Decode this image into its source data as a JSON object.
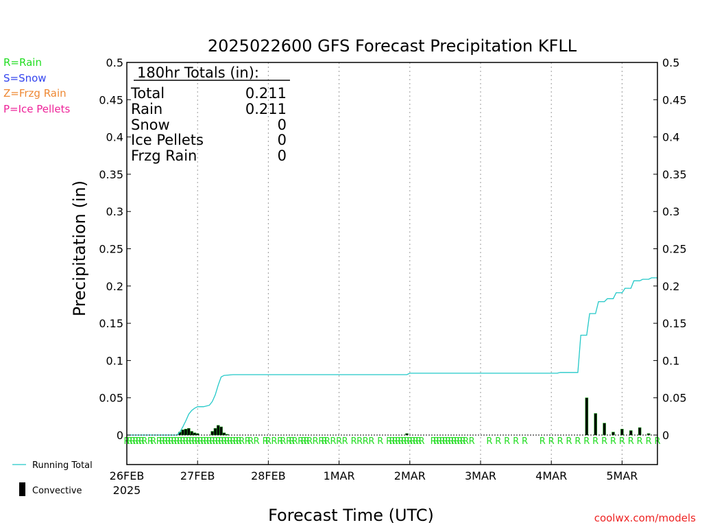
{
  "title": "2025022600 GFS Forecast Precipitation KFLL",
  "legend_types": [
    {
      "label": "R=Rain",
      "color": "#22dd22"
    },
    {
      "label": "S=Snow",
      "color": "#3344ee"
    },
    {
      "label": "Z=Frzg Rain",
      "color": "#ee8833"
    },
    {
      "label": "P=Ice Pellets",
      "color": "#ee2299"
    }
  ],
  "legend_bottom": {
    "running_total": "Running Total",
    "convective": "Convective"
  },
  "running_total_color": "#22c8c8",
  "bar_color": "#000000",
  "bar_edge_color": "#22aa22",
  "rain_marker_color": "#22dd22",
  "totals": {
    "header": "180hr Totals (in):",
    "rows": [
      {
        "label": "Total",
        "value": "0.211"
      },
      {
        "label": "Rain",
        "value": "0.211"
      },
      {
        "label": "Snow",
        "value": "0"
      },
      {
        "label": "Ice Pellets",
        "value": "0"
      },
      {
        "label": "Frzg Rain",
        "value": "0"
      }
    ]
  },
  "xlabel": "Forecast Time (UTC)",
  "ylabel": "Precipitation (in)",
  "credit": "coolwx.com/models",
  "chart_data": {
    "type": "bar",
    "x_unit": "forecast hour from 2025-02-26 00 UTC",
    "xlim": [
      0,
      180
    ],
    "ylim": [
      0,
      0.5
    ],
    "yticks": [
      "0",
      "0.05",
      "0.1",
      "0.15",
      "0.2",
      "0.25",
      "0.3",
      "0.35",
      "0.4",
      "0.45",
      "0.5"
    ],
    "xticks": [
      {
        "hour": 0,
        "label": "26FEB",
        "sub": "2025"
      },
      {
        "hour": 24,
        "label": "27FEB",
        "sub": ""
      },
      {
        "hour": 48,
        "label": "28FEB",
        "sub": ""
      },
      {
        "hour": 72,
        "label": "1MAR",
        "sub": ""
      },
      {
        "hour": 96,
        "label": "2MAR",
        "sub": ""
      },
      {
        "hour": 120,
        "label": "3MAR",
        "sub": ""
      },
      {
        "hour": 144,
        "label": "4MAR",
        "sub": ""
      },
      {
        "hour": 168,
        "label": "5MAR",
        "sub": ""
      }
    ],
    "precip_bars": [
      {
        "hour": 18,
        "value": 0.004
      },
      {
        "hour": 19,
        "value": 0.007
      },
      {
        "hour": 20,
        "value": 0.008
      },
      {
        "hour": 21,
        "value": 0.009
      },
      {
        "hour": 22,
        "value": 0.005
      },
      {
        "hour": 23,
        "value": 0.003
      },
      {
        "hour": 24,
        "value": 0.002
      },
      {
        "hour": 29,
        "value": 0.005
      },
      {
        "hour": 30,
        "value": 0.009
      },
      {
        "hour": 31,
        "value": 0.013
      },
      {
        "hour": 32,
        "value": 0.011
      },
      {
        "hour": 33,
        "value": 0.003
      },
      {
        "hour": 34,
        "value": 0.001
      },
      {
        "hour": 95,
        "value": 0.002
      },
      {
        "hour": 156,
        "value": 0.05
      },
      {
        "hour": 159,
        "value": 0.029
      },
      {
        "hour": 162,
        "value": 0.016
      },
      {
        "hour": 165,
        "value": 0.004
      },
      {
        "hour": 168,
        "value": 0.008
      },
      {
        "hour": 171,
        "value": 0.006
      },
      {
        "hour": 174,
        "value": 0.01
      },
      {
        "hour": 177,
        "value": 0.002
      }
    ],
    "running_total": [
      [
        0,
        0
      ],
      [
        17,
        0
      ],
      [
        18,
        0.004
      ],
      [
        19,
        0.011
      ],
      [
        20,
        0.019
      ],
      [
        21,
        0.028
      ],
      [
        22,
        0.033
      ],
      [
        23,
        0.036
      ],
      [
        24,
        0.038
      ],
      [
        26,
        0.038
      ],
      [
        28,
        0.04
      ],
      [
        29,
        0.045
      ],
      [
        30,
        0.054
      ],
      [
        31,
        0.067
      ],
      [
        32,
        0.078
      ],
      [
        33,
        0.08
      ],
      [
        36,
        0.081
      ],
      [
        95,
        0.081
      ],
      [
        96,
        0.083
      ],
      [
        146,
        0.083
      ],
      [
        147,
        0.084
      ],
      [
        153,
        0.084
      ],
      [
        154,
        0.134
      ],
      [
        156,
        0.134
      ],
      [
        157,
        0.163
      ],
      [
        159,
        0.163
      ],
      [
        160,
        0.179
      ],
      [
        162,
        0.179
      ],
      [
        163,
        0.183
      ],
      [
        165,
        0.183
      ],
      [
        166,
        0.191
      ],
      [
        168,
        0.191
      ],
      [
        169,
        0.197
      ],
      [
        171,
        0.197
      ],
      [
        172,
        0.207
      ],
      [
        174,
        0.207
      ],
      [
        175,
        0.209
      ],
      [
        177,
        0.209
      ],
      [
        178,
        0.211
      ],
      [
        180,
        0.211
      ]
    ],
    "rain_hours": [
      0,
      1,
      2,
      3,
      4,
      5,
      6,
      8,
      9,
      11,
      12,
      13,
      14,
      15,
      16,
      17,
      18,
      19,
      20,
      21,
      22,
      23,
      24,
      25,
      26,
      27,
      28,
      29,
      30,
      31,
      32,
      33,
      34,
      35,
      36,
      37,
      38,
      39,
      41,
      42,
      44,
      47,
      48,
      50,
      52,
      53,
      55,
      56,
      57,
      59,
      60,
      61,
      62,
      64,
      66,
      67,
      68,
      70,
      72,
      74,
      77,
      79,
      81,
      83,
      86,
      89,
      90,
      91,
      92,
      93,
      94,
      95,
      96,
      97,
      98,
      99,
      100,
      104,
      105,
      106,
      107,
      108,
      109,
      110,
      111,
      112,
      113,
      114,
      115,
      117,
      123,
      126,
      129,
      132,
      135,
      141,
      144,
      147,
      150,
      153,
      156,
      159,
      162,
      165,
      168,
      171,
      174,
      177,
      180
    ]
  }
}
